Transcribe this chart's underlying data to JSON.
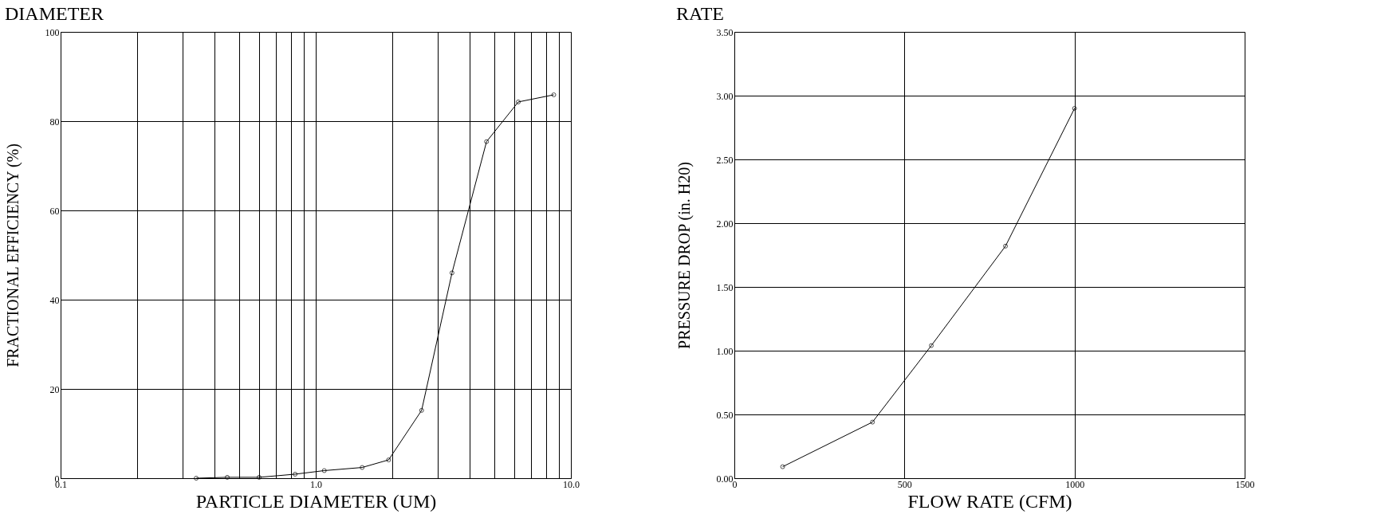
{
  "chart_data": [
    {
      "type": "line",
      "title": "DIAMETER",
      "xlabel": "PARTICLE DIAMETER (UM)",
      "ylabel": "FRACTIONAL EFFICIENCY (%)",
      "log": "x",
      "grid": true,
      "marker": "circle",
      "line_style": "solid",
      "x": [
        0.34,
        0.45,
        0.6,
        0.83,
        1.08,
        1.52,
        1.93,
        2.6,
        3.42,
        4.67,
        6.22,
        8.57
      ],
      "series": [
        {
          "color": "#000000",
          "values": [
            0,
            0.2,
            0.2,
            0.9,
            1.7,
            2.4,
            4.1,
            15.2,
            46.0,
            75.4,
            84.3,
            85.9
          ]
        }
      ],
      "xlim": [
        0.1,
        10
      ],
      "ylim": [
        0,
        100
      ],
      "xticks": [
        {
          "value": 0.1,
          "label": "0.1"
        },
        {
          "value": 0.2,
          "label": null
        },
        {
          "value": 0.3,
          "label": null
        },
        {
          "value": 0.4,
          "label": null
        },
        {
          "value": 0.5,
          "label": null
        },
        {
          "value": 0.6,
          "label": null
        },
        {
          "value": 0.7,
          "label": null
        },
        {
          "value": 0.8,
          "label": null
        },
        {
          "value": 0.9,
          "label": null
        },
        {
          "value": 1,
          "label": "1.0"
        },
        {
          "value": 2,
          "label": null
        },
        {
          "value": 3,
          "label": null
        },
        {
          "value": 4,
          "label": null
        },
        {
          "value": 5,
          "label": null
        },
        {
          "value": 6,
          "label": null
        },
        {
          "value": 7,
          "label": null
        },
        {
          "value": 8,
          "label": null
        },
        {
          "value": 9,
          "label": null
        },
        {
          "value": 10,
          "label": "10.0"
        }
      ],
      "yticks": [
        0,
        20,
        40,
        60,
        80,
        100
      ]
    },
    {
      "type": "line",
      "title": "RATE",
      "xlabel": "FLOW RATE (CFM)",
      "ylabel": "PRESSURE DROP (in. H20)",
      "grid": true,
      "marker": "circle",
      "line_style": "solid",
      "x": [
        142,
        406,
        579,
        797,
        1000
      ],
      "series": [
        {
          "color": "#000000",
          "values": [
            0.09,
            0.44,
            1.04,
            1.82,
            2.9
          ]
        }
      ],
      "xlim": [
        0,
        1500
      ],
      "ylim": [
        0,
        3.5
      ],
      "xticks": [
        0,
        500,
        1000,
        1500
      ],
      "yticks": [
        {
          "value": 0,
          "label": "0.00"
        },
        {
          "value": 0.5,
          "label": "0.50"
        },
        {
          "value": 1,
          "label": "1.00"
        },
        {
          "value": 1.5,
          "label": "1.50"
        },
        {
          "value": 2,
          "label": "2.00"
        },
        {
          "value": 2.5,
          "label": "2.50"
        },
        {
          "value": 3,
          "label": "3.00"
        },
        {
          "value": 3.5,
          "label": "3.50"
        }
      ]
    }
  ]
}
